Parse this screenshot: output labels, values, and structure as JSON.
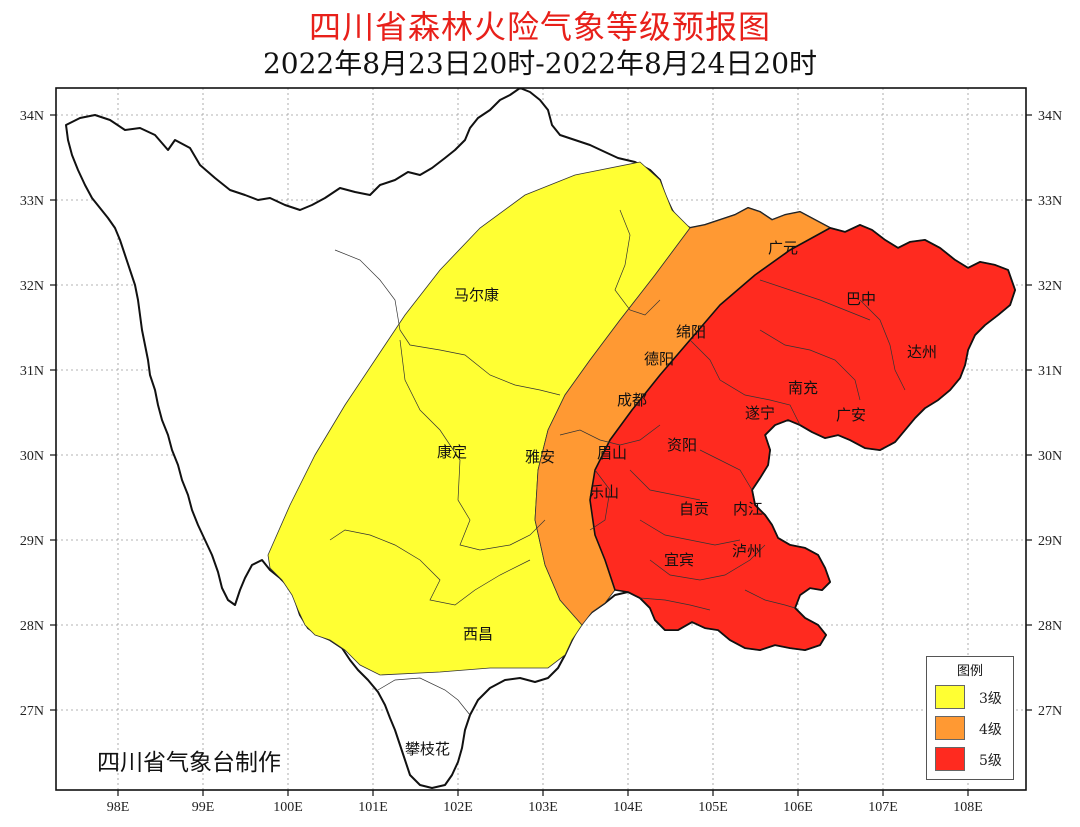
{
  "title": "四川省森林火险气象等级预报图",
  "subtitle": "2022年8月23日20时-2022年8月24日20时",
  "credit": "四川省气象台制作",
  "lat_ticks_left": [
    "34N",
    "33N",
    "32N",
    "31N",
    "30N",
    "29N",
    "28N",
    "27N"
  ],
  "lat_ticks_right": [
    "34N",
    "33N",
    "32N",
    "31N",
    "30N",
    "29N",
    "28N",
    "27N"
  ],
  "lon_ticks": [
    "98E",
    "99E",
    "100E",
    "101E",
    "102E",
    "103E",
    "104E",
    "105E",
    "106E",
    "107E",
    "108E"
  ],
  "cities": [
    {
      "name": "马尔康"
    },
    {
      "name": "广元"
    },
    {
      "name": "巴中"
    },
    {
      "name": "绵阳"
    },
    {
      "name": "德阳"
    },
    {
      "name": "达州"
    },
    {
      "name": "成都"
    },
    {
      "name": "南充"
    },
    {
      "name": "遂宁"
    },
    {
      "name": "广安"
    },
    {
      "name": "康定"
    },
    {
      "name": "雅安"
    },
    {
      "name": "眉山"
    },
    {
      "name": "资阳"
    },
    {
      "name": "乐山"
    },
    {
      "name": "自贡"
    },
    {
      "name": "内江"
    },
    {
      "name": "宜宾"
    },
    {
      "name": "泸州"
    },
    {
      "name": "西昌"
    },
    {
      "name": "攀枝花"
    }
  ],
  "legend": {
    "title": "图例",
    "items": [
      {
        "label": "3级",
        "color": "#ffff33"
      },
      {
        "label": "4级",
        "color": "#ff9933"
      },
      {
        "label": "5级",
        "color": "#ff2a1f"
      }
    ]
  },
  "colors": {
    "level3": "#ffff33",
    "level4": "#ff9933",
    "level5": "#ff2a1f",
    "title": "#e8201a"
  }
}
